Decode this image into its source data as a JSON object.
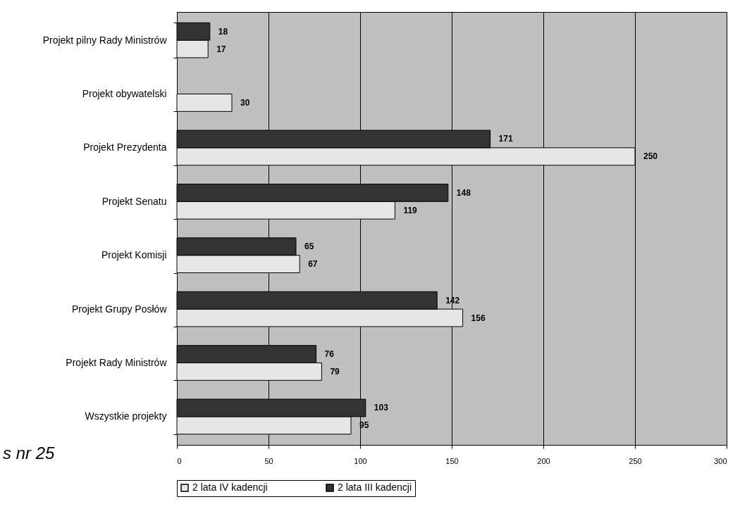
{
  "chart_data": {
    "type": "bar",
    "orientation": "horizontal",
    "categories": [
      "Projekt pilny Rady Ministrów",
      "Projekt obywatelski",
      "Projekt Prezydenta",
      "Projekt Senatu",
      "Projekt Komisji",
      "Projekt Grupy Posłów",
      "Projekt Rady Ministrów",
      "Wszystkie projekty"
    ],
    "series": [
      {
        "name": "2 lata IV kadencji",
        "color": "#e6e6e6",
        "values": [
          17,
          30,
          250,
          119,
          67,
          156,
          79,
          95
        ]
      },
      {
        "name": "2 lata III kadencji",
        "color": "#333333",
        "values": [
          18,
          null,
          171,
          148,
          65,
          142,
          76,
          103
        ]
      }
    ],
    "xlim": [
      0,
      300
    ],
    "xticks": [
      0,
      50,
      100,
      150,
      200,
      250,
      300
    ],
    "grid": "x",
    "legend": "bottom",
    "data_labels": true,
    "annotations": [
      "s nr 25"
    ]
  }
}
